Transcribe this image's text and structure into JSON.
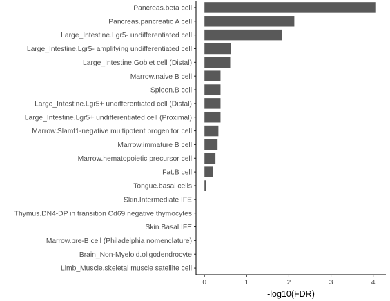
{
  "chart_data": {
    "type": "bar",
    "orientation": "horizontal",
    "xlabel": "-log10(FDR)",
    "ylabel": "",
    "xlim": [
      -0.2,
      4.3
    ],
    "xticks": [
      0,
      1,
      2,
      3,
      4
    ],
    "grid": false,
    "bar_color": "#595959",
    "categories": [
      "Pancreas.beta cell",
      "Pancreas.pancreatic A cell",
      "Large_Intestine.Lgr5- undifferentiated cell",
      "Large_Intestine.Lgr5- amplifying undifferentiated cell",
      "Large_Intestine.Goblet cell (Distal)",
      "Marrow.naive B cell",
      "Spleen.B cell",
      "Large_Intestine.Lgr5+ undifferentiated cell (Distal)",
      "Large_Intestine.Lgr5+ undifferentiated cell (Proximal)",
      "Marrow.Slamf1-negative multipotent progenitor cell",
      "Marrow.immature B cell",
      "Marrow.hematopoietic precursor cell",
      "Fat.B cell",
      "Tongue.basal cells",
      "Skin.Intermediate IFE",
      "Thymus.DN4-DP in transition Cd69 negative thymocytes",
      "Skin.Basal IFE",
      "Marrow.pre-B cell (Philadelphia nomenclature)",
      "Brain_Non-Myeloid.oligodendrocyte",
      "Limb_Muscle.skeletal muscle satellite cell"
    ],
    "values": [
      4.05,
      2.13,
      1.83,
      0.62,
      0.61,
      0.38,
      0.38,
      0.38,
      0.38,
      0.33,
      0.31,
      0.26,
      0.2,
      0.04,
      0.0,
      0.0,
      0.0,
      0.0,
      0.0,
      0.0
    ]
  }
}
